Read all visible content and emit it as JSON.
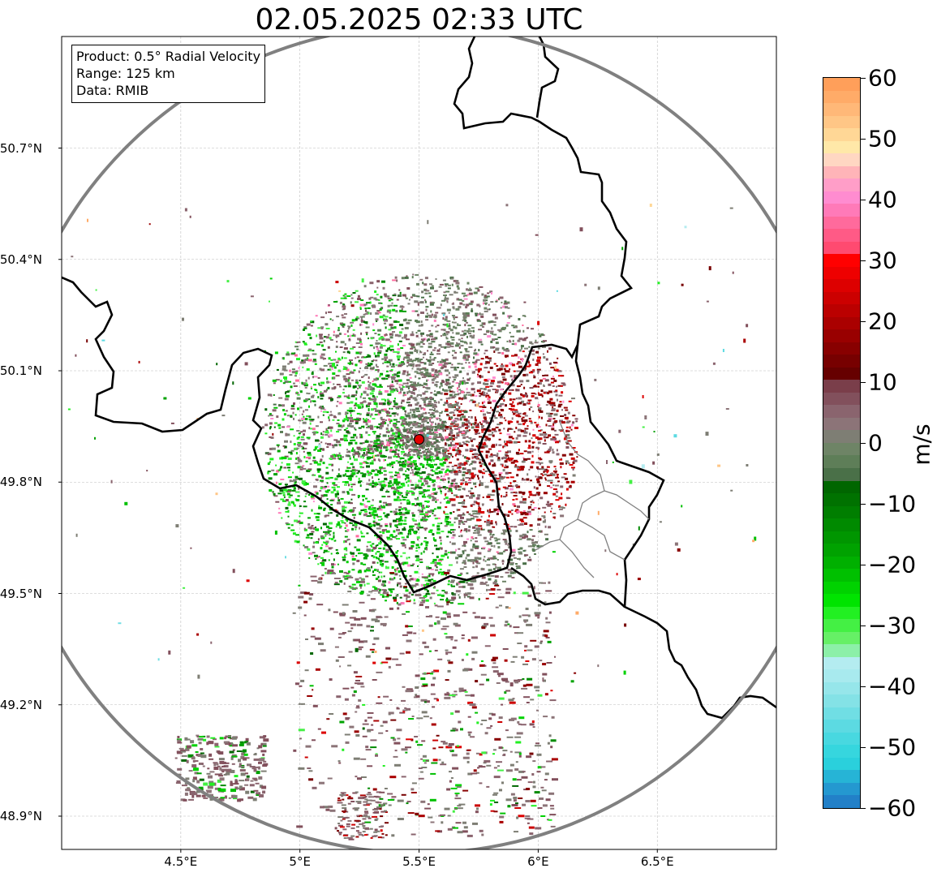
{
  "title": "02.05.2025 02:33 UTC",
  "info_box": {
    "product": "Product: 0.5° Radial Velocity",
    "range": "Range: 125 km",
    "data": "Data: RMIB"
  },
  "axes": {
    "lon_ticks": [
      "4.5°E",
      "5°E",
      "5.5°E",
      "6°E",
      "6.5°E"
    ],
    "lon_values": [
      4.5,
      5.0,
      5.5,
      6.0,
      6.5
    ],
    "lat_ticks": [
      "50.7°N",
      "50.4°N",
      "50.1°N",
      "49.8°N",
      "49.5°N",
      "49.2°N",
      "48.9°N"
    ],
    "lat_values": [
      50.7,
      50.4,
      50.1,
      49.8,
      49.5,
      49.2,
      48.9
    ],
    "lon_range": [
      4.0,
      7.0
    ],
    "lat_range": [
      48.8,
      51.0
    ],
    "grid": true
  },
  "radar": {
    "site_lon": 5.5,
    "site_lat": 49.915,
    "range_km": 125,
    "ring_color": "#808080",
    "site_color": "#e00000"
  },
  "colorbar": {
    "label": "m/s",
    "min": -60,
    "max": 60,
    "ticks": [
      "60",
      "50",
      "40",
      "30",
      "20",
      "10",
      "0",
      "−10",
      "−20",
      "−30",
      "−40",
      "−50",
      "−60"
    ],
    "tick_values": [
      60,
      50,
      40,
      30,
      20,
      10,
      0,
      -10,
      -20,
      -30,
      -40,
      -50,
      -60
    ],
    "colors_top_to_bottom": [
      "#ff9f5a",
      "#ffab68",
      "#ffb878",
      "#ffc686",
      "#ffd796",
      "#ffe8a8",
      "#ffd7c2",
      "#ffb4b8",
      "#ff9ec8",
      "#ff8cd0",
      "#ff7ab8",
      "#ff6a9c",
      "#ff5a86",
      "#ff4a70",
      "#ff0000",
      "#ee0000",
      "#dd0000",
      "#cc0000",
      "#bb0000",
      "#aa0000",
      "#990000",
      "#880000",
      "#770000",
      "#660000",
      "#7a3e4a",
      "#82505c",
      "#8a646e",
      "#8c7478",
      "#7e7e74",
      "#6e8466",
      "#5e7e58",
      "#4a7048",
      "#006600",
      "#007200",
      "#007e00",
      "#008a00",
      "#009600",
      "#00a200",
      "#00b000",
      "#00c000",
      "#00d200",
      "#00e400",
      "#22f022",
      "#44f044",
      "#66f066",
      "#8cf0a8",
      "#b4ecf0",
      "#a8eaee",
      "#96e6ea",
      "#84e2e6",
      "#70dee4",
      "#5cdae2",
      "#48d8e0",
      "#36d6de",
      "#2ad0dc",
      "#26b4d6",
      "#2498d0",
      "#2280c8"
    ]
  }
}
